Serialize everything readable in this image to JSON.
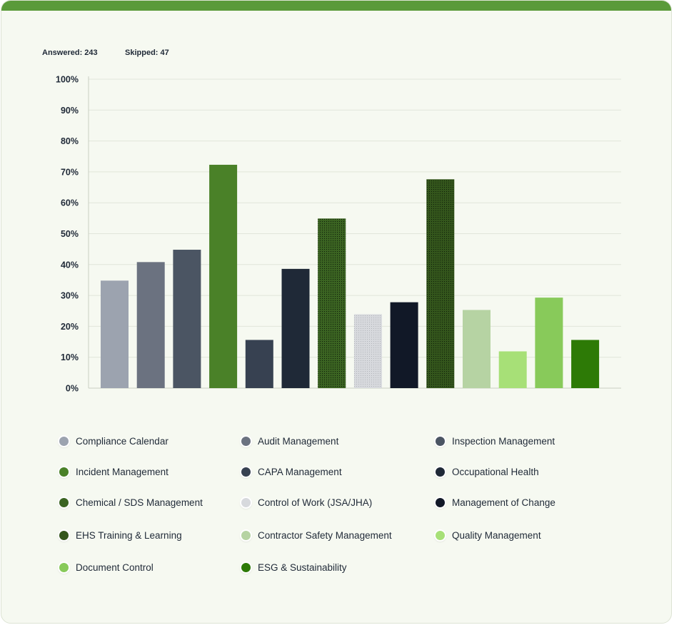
{
  "stats": {
    "answered": "Answered: 243",
    "skipped": "Skipped: 47"
  },
  "chart_data": {
    "type": "bar",
    "ylim": [
      0,
      100
    ],
    "yticks": [
      "0%",
      "10%",
      "20%",
      "30%",
      "40%",
      "50%",
      "60%",
      "70%",
      "80%",
      "90%",
      "100%"
    ],
    "grid": true,
    "legend_position": "bottom",
    "categories": [
      "Compliance Calendar",
      "Audit Management",
      "Inspection Management",
      "Incident Management",
      "CAPA Management",
      "Occupational Health",
      "Chemical / SDS Management",
      "Control of Work (JSA/JHA)",
      "Management of Change",
      "EHS Training & Learning",
      "Contractor Safety Management",
      "Quality Management",
      "Document Control",
      "ESG & Sustainability"
    ],
    "values": [
      34.8,
      40.8,
      44.8,
      72.3,
      15.6,
      38.6,
      54.9,
      23.9,
      27.8,
      67.6,
      25.3,
      11.9,
      29.3,
      15.6
    ],
    "colors": [
      "#9ca3af",
      "#6b7280",
      "#4b5563",
      "#4a8128",
      "#374151",
      "#1f2937",
      "#3b6422",
      "#d7d9dd",
      "#111827",
      "#34561c",
      "#b6d3a3",
      "#a7e077",
      "#88ca5a",
      "#2d7a06"
    ],
    "patterns": [
      "none",
      "none",
      "none",
      "none",
      "none",
      "none",
      "dots",
      "dots",
      "none",
      "dots",
      "none",
      "none",
      "none",
      "none"
    ]
  }
}
